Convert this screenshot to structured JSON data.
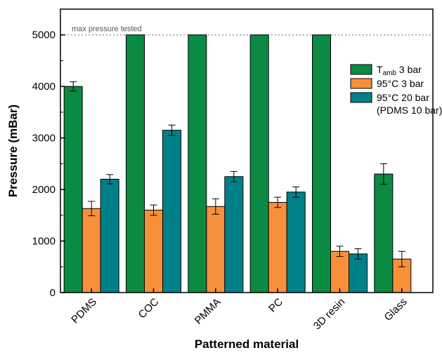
{
  "chart_data": {
    "type": "bar",
    "xlabel": "Patterned material",
    "ylabel": "Pressure (mBar)",
    "ylim": [
      0,
      5500
    ],
    "yticks": [
      0,
      1000,
      2000,
      3000,
      4000,
      5000
    ],
    "categories": [
      "PDMS",
      "COC",
      "PMMA",
      "PC",
      "3D resin",
      "Glass"
    ],
    "series": [
      {
        "name": "Tamb 3 bar",
        "name_parts": {
          "main": "T",
          "subscript": "amb",
          "rest": " 3 bar"
        },
        "color": "#0a8a43",
        "values": [
          4000,
          5000,
          5000,
          5000,
          5000,
          2300
        ],
        "errors": [
          90,
          null,
          null,
          null,
          null,
          200
        ]
      },
      {
        "name": "95°C 3 bar",
        "color": "#f7903a",
        "values": [
          1630,
          1600,
          1670,
          1750,
          800,
          650
        ],
        "errors": [
          140,
          100,
          150,
          100,
          100,
          150
        ]
      },
      {
        "name": "95°C 20 bar",
        "color": "#00818a",
        "values": [
          2200,
          3150,
          2250,
          1950,
          750,
          null
        ],
        "errors": [
          90,
          100,
          100,
          100,
          100,
          null
        ]
      }
    ],
    "legend": {
      "position": "right",
      "note": "(PDMS 10 bar)"
    },
    "reference_line": {
      "value": 5000,
      "label": "max pressure tested",
      "style": "dotted",
      "color": "#999999"
    },
    "grid": false
  }
}
